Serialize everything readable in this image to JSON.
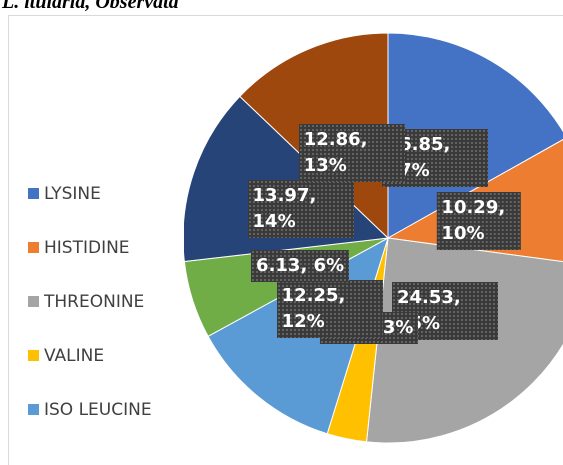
{
  "chart_data": {
    "type": "pie",
    "title": "L. ituiaria, Observata",
    "categories": [
      "LYSINE",
      "HISTIDINE",
      "THREONINE",
      "VALINE",
      "ISO LEUCINE",
      null,
      null,
      null
    ],
    "values": [
      16.85,
      10.29,
      24.53,
      3.12,
      12.25,
      6.13,
      13.97,
      12.86
    ],
    "value_labels": [
      "16.85, 17%",
      "10.29, 10%",
      "24.53, 25%",
      "3.12, 3%",
      "12.25, 12%",
      "6.13, 6%",
      "13.97, 14%",
      "12.86, 13%"
    ],
    "colors": [
      "#4472c4",
      "#ed7d31",
      "#a5a5a5",
      "#ffc000",
      "#5b9bd5",
      "#70ad47",
      "#264478",
      "#9e480e"
    ]
  }
}
